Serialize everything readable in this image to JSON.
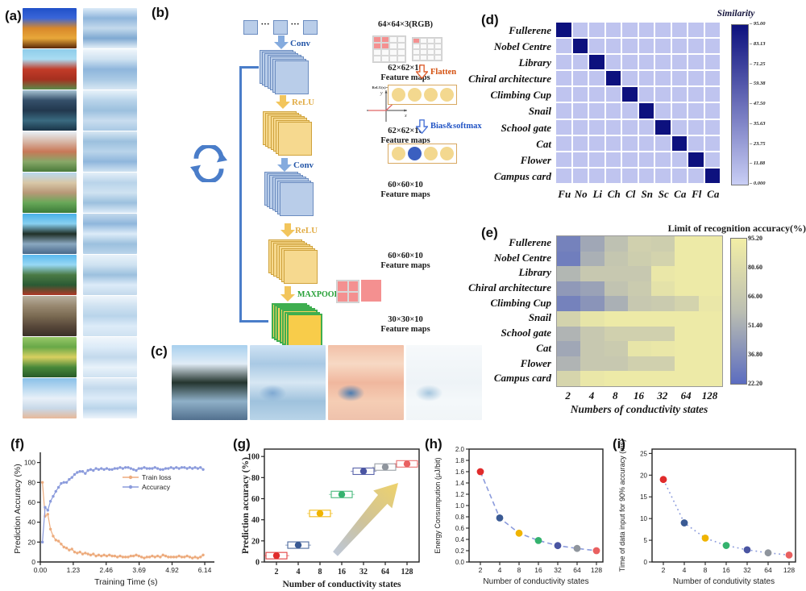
{
  "panel_labels": {
    "a": "(a)",
    "b": "(b)",
    "c": "(c)",
    "d": "(d)",
    "e": "(e)",
    "f": "(f)",
    "g": "(g)",
    "h": "(h)",
    "i": "(i)"
  },
  "categories": [
    "Fullerene",
    "Nobel Centre",
    "Library",
    "Chiral architecture",
    "Climbing Cup",
    "Snail",
    "School gate",
    "Cat",
    "Flower",
    "Campus card"
  ],
  "panel_a": {
    "images": [
      {
        "name": "fullerene",
        "original": [
          "#2050c8",
          "#3a66d8",
          "#d8882a",
          "#e8a83a",
          "#5a2808"
        ],
        "processed": [
          "#dcebf8",
          "#8fb6dc",
          "#c3d9ec",
          "#7fa9d2",
          "#e4eff8"
        ]
      },
      {
        "name": "nobel-centre",
        "original": [
          "#8ecdea",
          "#aadcf2",
          "#c23b28",
          "#a63020",
          "#5a8a4a"
        ],
        "processed": [
          "#f0f6fb",
          "#cfe2f1",
          "#8fb6dc",
          "#a9c9e4",
          "#d7e7f3"
        ]
      },
      {
        "name": "library",
        "original": [
          "#a8c4d4",
          "#35506a",
          "#22384e",
          "#3a6a80",
          "#1a3448"
        ],
        "processed": [
          "#e8f2fa",
          "#b9d4ea",
          "#9cc0de",
          "#c9ddef",
          "#a9c9e4"
        ]
      },
      {
        "name": "chiral-architecture",
        "original": [
          "#e8f0f6",
          "#d8b8a8",
          "#c87858",
          "#88a868",
          "#4a7a3a"
        ],
        "processed": [
          "#d7e7f3",
          "#9cc0de",
          "#b9d4ea",
          "#8fb6dc",
          "#cfe2f1"
        ]
      },
      {
        "name": "climbing-cup",
        "original": [
          "#b8d8ee",
          "#d8c8a8",
          "#b89878",
          "#68a858",
          "#3a7a38"
        ],
        "processed": [
          "#e4eff8",
          "#b9d4ea",
          "#cfe2f1",
          "#9cc0de",
          "#dcebf8"
        ]
      },
      {
        "name": "snail",
        "original": [
          "#48b0e8",
          "#88d0f0",
          "#203028",
          "#8aa8c0",
          "#48688a"
        ],
        "processed": [
          "#c3d9ec",
          "#8fb6dc",
          "#dcebf8",
          "#9cc0de",
          "#b9d4ea"
        ]
      },
      {
        "name": "school-gate",
        "original": [
          "#58b8ee",
          "#98d8f4",
          "#4a7a44",
          "#2a5a34",
          "#b03828"
        ],
        "processed": [
          "#e8f2fa",
          "#cfe2f1",
          "#9cc0de",
          "#dcebf8",
          "#c3d9ec"
        ]
      },
      {
        "name": "cat",
        "original": [
          "#b8b0a0",
          "#988870",
          "#7a6a52",
          "#58483a",
          "#3a3028"
        ],
        "processed": [
          "#eef5fb",
          "#cfe2f1",
          "#b9d4ea",
          "#dcebf8",
          "#cfe2f1"
        ]
      },
      {
        "name": "flower",
        "original": [
          "#98c868",
          "#68a848",
          "#d8d060",
          "#48883a",
          "#285a28"
        ],
        "processed": [
          "#f0f6fb",
          "#dcebf8",
          "#c3d9ec",
          "#e8f2fa",
          "#cfe2f1"
        ]
      },
      {
        "name": "campus-card",
        "original": [
          "#88c0e8",
          "#b8d8f0",
          "#e8f0f8",
          "#c8d8e8",
          "#e8b898"
        ],
        "processed": [
          "#e4eff8",
          "#c3d9ec",
          "#dcebf8",
          "#b9d4ea",
          "#eef5fb"
        ]
      }
    ]
  },
  "panel_b": {
    "input_size": "64×64×3(RGB)",
    "ops": {
      "conv": "Conv",
      "relu": "ReLU",
      "maxpool": "MAXPOOL",
      "flatten": "Flatten",
      "bias_softmax": "Bias&softmax"
    },
    "feature_map_sizes": [
      "62×62×10",
      "62×62×10",
      "60×60×10",
      "60×60×10",
      "30×30×10"
    ],
    "feature_maps_caption": "Feature maps",
    "relu_formula": "ReLU(x)=max(0,x)",
    "ellipsis": "···",
    "colors": {
      "arrow_blue": "#85abde",
      "arrow_yellow": "#f2c55c",
      "loop_blue": "#4a7dc9",
      "stack_blue": "#b9cde9",
      "stack_blue_border": "#6b8cc0",
      "stack_yellow": "#f6d98f",
      "stack_yellow_border": "#cfa23c",
      "stack_green_fill": "#f6d35f",
      "stack_green_border": "#3fae4f",
      "conv_text": "#2456a8",
      "relu_text": "#e2ae4a",
      "maxpool_text": "#27a037",
      "flatten_text": "#d4500f",
      "bias_text": "#2053c4",
      "pink": "#f49090",
      "neuron_yellow": "#f3d88f",
      "neuron_blue": "#3b5fc0"
    }
  },
  "panel_c": {
    "images": [
      {
        "name": "snail-original",
        "colors": [
          "#a8d0ee",
          "#e0ecf6",
          "#24342e",
          "#8fb0c8",
          "#52708e"
        ],
        "blob": null
      },
      {
        "name": "snail-feature-blue",
        "colors": [
          "#cfe3f4",
          "#a9c9e4",
          "#d7e7f3",
          "#9fc2dd",
          "#b9d4e8"
        ],
        "blob": "#7fa9d2"
      },
      {
        "name": "snail-feature-orange",
        "colors": [
          "#f2c0a8",
          "#f7d9c4",
          "#f0b79e",
          "#f5cdb4",
          "#efc2ac"
        ],
        "blob": "#4c7cb0"
      },
      {
        "name": "snail-feature-light",
        "colors": [
          "#f6f9fb",
          "#f2f6f9",
          "#eef3f7",
          "#f4f8fa",
          "#f1f5f8"
        ],
        "blob": "#a6c6de"
      }
    ]
  },
  "chart_data": [
    {
      "id": "d",
      "type": "heatmap",
      "title": "Similarity",
      "rows": [
        "Fullerene",
        "Nobel Centre",
        "Library",
        "Chiral architecture",
        "Climbing Cup",
        "Snail",
        "School gate",
        "Cat",
        "Flower",
        "Campus card"
      ],
      "cols": [
        "Fu",
        "No",
        "Li",
        "Ch",
        "Cl",
        "Sn",
        "Sc",
        "Ca",
        "Fl",
        "Ca"
      ],
      "diagonal_value": 95,
      "off_diagonal_value": 5,
      "vmin": 0,
      "vmax": 95,
      "colorbar_ticks": [
        "95.00",
        "83.13",
        "71.25",
        "59.38",
        "47.50",
        "35.63",
        "23.75",
        "11.88",
        "0.000"
      ],
      "colormap": {
        "low": "#c9cef5",
        "high": "#0d117e"
      }
    },
    {
      "id": "e",
      "type": "heatmap",
      "title": "Limit of recognition accuracy(%)",
      "rows": [
        "Fullerene",
        "Nobel Centre",
        "Library",
        "Chiral architecture",
        "Climbing Cup",
        "Snail",
        "School gate",
        "Cat",
        "Flower",
        "Campus card"
      ],
      "cols": [
        "2",
        "4",
        "8",
        "16",
        "32",
        "64",
        "128"
      ],
      "xlabel": "Numbers of conductivity states",
      "values": [
        [
          32,
          48,
          60,
          72,
          70,
          92,
          92
        ],
        [
          30,
          52,
          64,
          70,
          74,
          92,
          92
        ],
        [
          55,
          66,
          66,
          66,
          90,
          92,
          92
        ],
        [
          42,
          46,
          62,
          68,
          86,
          92,
          92
        ],
        [
          32,
          40,
          52,
          66,
          68,
          74,
          90
        ],
        [
          74,
          88,
          92,
          92,
          92,
          92,
          92
        ],
        [
          54,
          66,
          72,
          72,
          72,
          92,
          92
        ],
        [
          48,
          66,
          68,
          88,
          90,
          92,
          92
        ],
        [
          54,
          66,
          66,
          72,
          72,
          92,
          92
        ],
        [
          76,
          90,
          92,
          92,
          92,
          92,
          92
        ]
      ],
      "vmin": 22.2,
      "vmax": 95.2,
      "colorbar_ticks": [
        "95.20",
        "80.60",
        "66.00",
        "51.40",
        "36.80",
        "22.20"
      ],
      "colormap": {
        "low": "#5b6cc0",
        "mid": "#bcbfb2",
        "high": "#f2eea6"
      }
    },
    {
      "id": "f",
      "type": "line",
      "xlabel": "Training Time (s)",
      "ylabel": "Prediction Accuracy (%)",
      "xticks": [
        "0.00",
        "1.23",
        "2.46",
        "3.69",
        "4.92",
        "6.14"
      ],
      "yticks": [
        0,
        20,
        40,
        60,
        80,
        100
      ],
      "xlim": [
        0,
        6.5
      ],
      "ylim": [
        0,
        107
      ],
      "legend": [
        "Train loss",
        "Accuracy"
      ],
      "x": [
        0.08,
        0.18,
        0.28,
        0.38,
        0.48,
        0.58,
        0.68,
        0.78,
        0.88,
        0.98,
        1.08,
        1.18,
        1.28,
        1.38,
        1.48,
        1.58,
        1.68,
        1.78,
        1.88,
        1.98,
        2.08,
        2.18,
        2.28,
        2.38,
        2.48,
        2.58,
        2.68,
        2.78,
        2.88,
        2.98,
        3.08,
        3.18,
        3.28,
        3.38,
        3.48,
        3.58,
        3.68,
        3.78,
        3.88,
        3.98,
        4.08,
        4.18,
        4.28,
        4.38,
        4.48,
        4.58,
        4.68,
        4.78,
        4.88,
        4.98,
        5.08,
        5.18,
        5.28,
        5.38,
        5.48,
        5.58,
        5.68,
        5.78,
        5.88,
        5.98,
        6.08
      ],
      "series": [
        {
          "name": "Train loss",
          "color": "#edac7e",
          "y": [
            80,
            46,
            48,
            33,
            26,
            22,
            21,
            18,
            15,
            14,
            12,
            13,
            10,
            9,
            10,
            8,
            9,
            8,
            7,
            8,
            6,
            7,
            6,
            7,
            6,
            7,
            6,
            6,
            5,
            6,
            5,
            5,
            5,
            6,
            6,
            7,
            6,
            5,
            4,
            5,
            5,
            6,
            5,
            6,
            5,
            7,
            6,
            5,
            5,
            5,
            5,
            6,
            5,
            5,
            6,
            5,
            4,
            5,
            4,
            5,
            7
          ]
        },
        {
          "name": "Accuracy",
          "color": "#8b9bdc",
          "y": [
            20,
            55,
            52,
            61,
            66,
            71,
            75,
            79,
            80,
            80,
            83,
            85,
            88,
            90,
            91,
            91,
            89,
            92,
            93,
            92,
            94,
            93,
            94,
            93,
            94,
            93,
            93,
            94,
            94,
            95,
            94,
            95,
            95,
            94,
            93,
            92,
            94,
            94,
            95,
            94,
            94,
            94,
            95,
            94,
            93,
            93,
            94,
            94,
            95,
            94,
            95,
            94,
            95,
            95,
            94,
            95,
            94,
            95,
            94,
            95,
            93
          ]
        }
      ]
    },
    {
      "id": "g",
      "type": "scatter",
      "xlabel": "Number of conductivity states",
      "ylabel": "Prediction accuracy (%)",
      "categories": [
        "2",
        "4",
        "8",
        "16",
        "32",
        "64",
        "128"
      ],
      "values": [
        6,
        16,
        46,
        64,
        86,
        90,
        93
      ],
      "yticks": [
        0,
        20,
        40,
        60,
        80,
        100
      ],
      "ylim": [
        0,
        107
      ],
      "colors": [
        "#e02b2b",
        "#3a5a94",
        "#f0b400",
        "#34b26e",
        "#4a55a2",
        "#8f959d",
        "#e96060"
      ],
      "annotation": "gradient-arrow"
    },
    {
      "id": "h",
      "type": "scatter-line",
      "xlabel": "Number of conductivity states",
      "ylabel": "Energy Consumpution (μJ/bit)",
      "categories": [
        "2",
        "4",
        "8",
        "16",
        "32",
        "64",
        "128"
      ],
      "values": [
        1.6,
        0.78,
        0.51,
        0.38,
        0.29,
        0.24,
        0.2
      ],
      "yticks": [
        "0.0",
        "0.2",
        "0.4",
        "0.6",
        "0.8",
        "1.0",
        "1.2",
        "1.4",
        "1.6",
        "1.8",
        "2.0"
      ],
      "ylim": [
        0,
        2.0
      ],
      "line_style": "dashed",
      "line_color": "#8b9bdc",
      "colors": [
        "#e02b2b",
        "#3a5a94",
        "#f0b400",
        "#34b26e",
        "#4a55a2",
        "#8f959d",
        "#e96060"
      ]
    },
    {
      "id": "i",
      "type": "scatter-line",
      "xlabel": "Number of condutivity states",
      "ylabel": "Time of data input for 90% accuracy (ms)",
      "categories": [
        "2",
        "4",
        "8",
        "16",
        "32",
        "64",
        "128"
      ],
      "values": [
        19,
        9,
        5.5,
        3.8,
        2.8,
        2.1,
        1.6
      ],
      "yticks": [
        0,
        5,
        10,
        15,
        20,
        25
      ],
      "ylim": [
        0,
        26
      ],
      "line_style": "dotted",
      "line_color": "#8b9bdc",
      "colors": [
        "#e02b2b",
        "#3a5a94",
        "#f0b400",
        "#34b26e",
        "#4a55a2",
        "#8f959d",
        "#e96060"
      ]
    }
  ]
}
